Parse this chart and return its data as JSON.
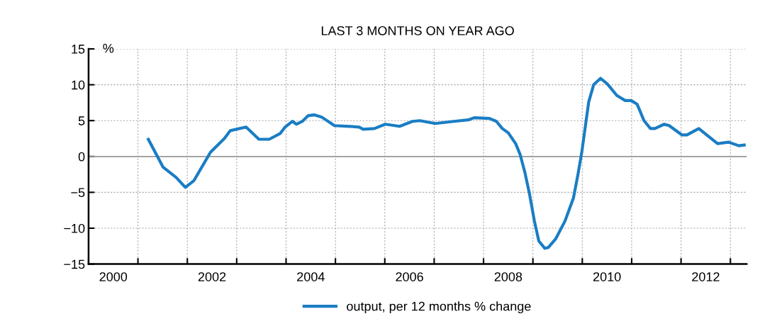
{
  "chart_data": {
    "type": "line",
    "title": "LAST 3 MONTHS ON YEAR AGO",
    "ylabel": "%",
    "x": [
      2001.21,
      2001.51,
      2001.77,
      2001.96,
      2002.13,
      2002.47,
      2002.75,
      2002.87,
      2003.19,
      2003.45,
      2003.66,
      2003.88,
      2003.98,
      2004.13,
      2004.21,
      2004.33,
      2004.45,
      2004.57,
      2004.72,
      2004.98,
      2005.29,
      2005.48,
      2005.56,
      2005.79,
      2006.01,
      2006.3,
      2006.56,
      2006.71,
      2007.02,
      2007.4,
      2007.69,
      2007.81,
      2008.12,
      2008.26,
      2008.38,
      2008.5,
      2008.65,
      2008.74,
      2008.84,
      2008.93,
      2009.03,
      2009.12,
      2009.24,
      2009.31,
      2009.46,
      2009.65,
      2009.82,
      2009.91,
      2009.99,
      2010.06,
      2010.13,
      2010.23,
      2010.37,
      2010.51,
      2010.7,
      2010.87,
      2010.99,
      2011.11,
      2011.25,
      2011.38,
      2011.47,
      2011.66,
      2011.76,
      2012.02,
      2012.12,
      2012.36,
      2012.52,
      2012.74,
      2012.96,
      2013.17,
      2013.28
    ],
    "series": [
      {
        "name": "output, per 12 months % change",
        "color": "#1a7dc4",
        "values": [
          2.4,
          -1.5,
          -2.9,
          -4.3,
          -3.4,
          0.6,
          2.5,
          3.6,
          4.1,
          2.4,
          2.4,
          3.2,
          4.1,
          4.9,
          4.5,
          4.9,
          5.7,
          5.8,
          5.5,
          4.3,
          4.2,
          4.1,
          3.8,
          3.9,
          4.5,
          4.2,
          4.9,
          5.0,
          4.6,
          4.9,
          5.1,
          5.4,
          5.3,
          4.9,
          3.9,
          3.3,
          1.8,
          0.3,
          -2.3,
          -5.2,
          -9.0,
          -11.8,
          -12.8,
          -12.7,
          -11.5,
          -9.0,
          -5.8,
          -2.6,
          0.6,
          4.1,
          7.6,
          10.0,
          10.9,
          10.1,
          8.5,
          7.8,
          7.8,
          7.3,
          5.0,
          3.9,
          3.9,
          4.5,
          4.3,
          3.0,
          3.0,
          3.9,
          3.0,
          1.8,
          2.0,
          1.5,
          1.6
        ]
      }
    ],
    "xlim": [
      2000,
      2013.33
    ],
    "xticks": [
      {
        "value": 2000,
        "label": null
      },
      {
        "value": 2001,
        "label": null
      },
      {
        "value": 2002,
        "label": null
      },
      {
        "value": 2003,
        "label": null
      },
      {
        "value": 2004,
        "label": null
      },
      {
        "value": 2005,
        "label": null
      },
      {
        "value": 2006,
        "label": null
      },
      {
        "value": 2007,
        "label": null
      },
      {
        "value": 2008,
        "label": null
      },
      {
        "value": 2009,
        "label": null
      },
      {
        "value": 2010,
        "label": null
      },
      {
        "value": 2011,
        "label": null
      },
      {
        "value": 2012,
        "label": null
      },
      {
        "value": 2013,
        "label": null
      },
      {
        "value": 2000.5,
        "label": "2000"
      },
      {
        "value": 2002.5,
        "label": "2002"
      },
      {
        "value": 2004.5,
        "label": "2004"
      },
      {
        "value": 2006.5,
        "label": "2006"
      },
      {
        "value": 2008.5,
        "label": "2008"
      },
      {
        "value": 2010.5,
        "label": "2010"
      },
      {
        "value": 2012.5,
        "label": "2012"
      }
    ],
    "ylim": [
      -15,
      15
    ],
    "yticks": [
      {
        "value": -15,
        "label": "−15"
      },
      {
        "value": -10,
        "label": "−10"
      },
      {
        "value": -5,
        "label": "−5"
      },
      0,
      5,
      10,
      15
    ],
    "ref_lines": [
      {
        "axis": "y",
        "value": 0,
        "color": "#999999"
      }
    ],
    "grid": true,
    "legend": "bottom",
    "marker": "none",
    "line_style": "solid"
  }
}
